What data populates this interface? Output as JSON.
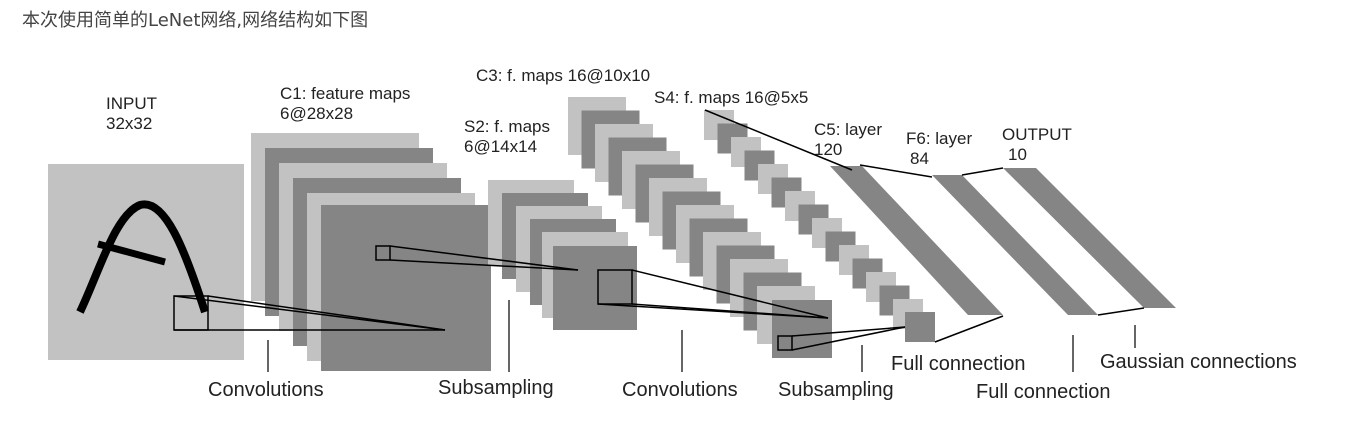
{
  "caption": "本次使用简单的LeNet网络,网络结构如下图",
  "layers": {
    "input": {
      "name": "INPUT",
      "size": "32x32"
    },
    "c1": {
      "name": "C1: feature maps",
      "size": "6@28x28"
    },
    "s2": {
      "name": "S2: f. maps",
      "size": "6@14x14"
    },
    "c3": {
      "name": "C3: f. maps 16@10x10"
    },
    "s4": {
      "name": "S4: f. maps 16@5x5"
    },
    "c5": {
      "name": "C5: layer",
      "size": "120"
    },
    "f6": {
      "name": "F6: layer",
      "size": "84"
    },
    "output": {
      "name": "OUTPUT",
      "size": "10"
    }
  },
  "operations": {
    "conv1": "Convolutions",
    "sub1": "Subsampling",
    "conv2": "Convolutions",
    "sub2": "Subsampling",
    "full1": "Full connection",
    "full2": "Full connection",
    "gauss": "Gaussian connections"
  },
  "colors": {
    "light": "#c2c2c2",
    "dark": "#858585",
    "line": "#000000"
  }
}
